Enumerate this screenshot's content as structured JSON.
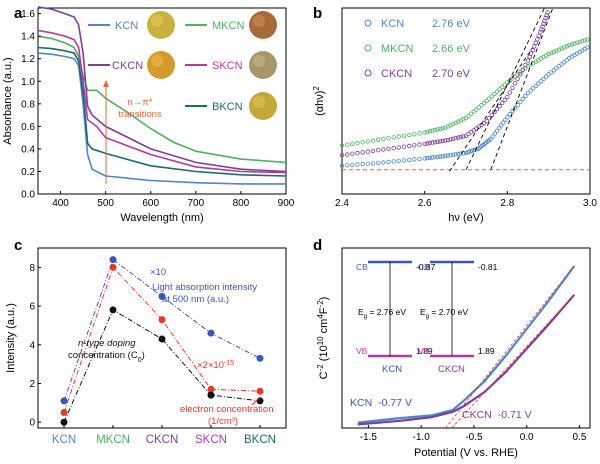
{
  "chart_data": [
    {
      "panel": "a",
      "type": "line",
      "xlabel": "Wavelength (nm)",
      "ylabel": "Absorbance (a.u.)",
      "xlim": [
        350,
        900
      ],
      "ylim": [
        0.0,
        1.65
      ],
      "xticks": [
        "400",
        "500",
        "600",
        "700",
        "800",
        "900"
      ],
      "yticks": [
        "0.0",
        "0.2",
        "0.4",
        "0.6",
        "0.8",
        "1.0",
        "1.2",
        "1.4",
        "1.6"
      ],
      "annotation": "n→π* transitions",
      "annotation_x": 500,
      "series": [
        {
          "name": "KCN",
          "color": "#4f86c6",
          "points": [
            [
              350,
              1.25
            ],
            [
              380,
              1.24
            ],
            [
              410,
              1.22
            ],
            [
              430,
              1.2
            ],
            [
              440,
              1.14
            ],
            [
              450,
              0.8
            ],
            [
              460,
              0.35
            ],
            [
              470,
              0.22
            ],
            [
              500,
              0.16
            ],
            [
              600,
              0.12
            ],
            [
              700,
              0.1
            ],
            [
              800,
              0.09
            ],
            [
              900,
              0.09
            ]
          ]
        },
        {
          "name": "MKCN",
          "color": "#4fb060",
          "points": [
            [
              350,
              1.4
            ],
            [
              380,
              1.38
            ],
            [
              410,
              1.34
            ],
            [
              430,
              1.3
            ],
            [
              440,
              1.22
            ],
            [
              450,
              1.05
            ],
            [
              460,
              0.92
            ],
            [
              480,
              0.92
            ],
            [
              500,
              0.85
            ],
            [
              550,
              0.72
            ],
            [
              600,
              0.58
            ],
            [
              650,
              0.46
            ],
            [
              700,
              0.38
            ],
            [
              800,
              0.31
            ],
            [
              900,
              0.28
            ]
          ]
        },
        {
          "name": "CKCN",
          "color": "#7c3f98",
          "points": [
            [
              350,
              1.66
            ],
            [
              380,
              1.64
            ],
            [
              410,
              1.6
            ],
            [
              430,
              1.57
            ],
            [
              440,
              1.5
            ],
            [
              450,
              1.25
            ],
            [
              460,
              0.78
            ],
            [
              470,
              0.7
            ],
            [
              500,
              0.6
            ],
            [
              600,
              0.4
            ],
            [
              700,
              0.28
            ],
            [
              800,
              0.22
            ],
            [
              900,
              0.2
            ]
          ]
        },
        {
          "name": "SKCN",
          "color": "#b53aa0",
          "points": [
            [
              350,
              1.45
            ],
            [
              380,
              1.43
            ],
            [
              410,
              1.4
            ],
            [
              430,
              1.37
            ],
            [
              440,
              1.3
            ],
            [
              450,
              1.0
            ],
            [
              460,
              0.66
            ],
            [
              480,
              0.6
            ],
            [
              500,
              0.5
            ],
            [
              600,
              0.35
            ],
            [
              700,
              0.24
            ],
            [
              800,
              0.2
            ],
            [
              900,
              0.19
            ]
          ]
        },
        {
          "name": "BKCN",
          "color": "#1d6a6a",
          "points": [
            [
              350,
              1.3
            ],
            [
              380,
              1.29
            ],
            [
              410,
              1.27
            ],
            [
              430,
              1.25
            ],
            [
              440,
              1.18
            ],
            [
              450,
              0.9
            ],
            [
              460,
              0.45
            ],
            [
              470,
              0.4
            ],
            [
              500,
              0.36
            ],
            [
              600,
              0.25
            ],
            [
              700,
              0.2
            ],
            [
              800,
              0.17
            ],
            [
              900,
              0.16
            ]
          ]
        }
      ]
    },
    {
      "panel": "b",
      "type": "scatter",
      "xlabel": "hν (eV)",
      "ylabel": "(αhν)²",
      "xlim": [
        2.4,
        3.0
      ],
      "ylim": [
        -3,
        20
      ],
      "xticks": [
        "2.4",
        "2.6",
        "2.8",
        "3.0"
      ],
      "series": [
        {
          "name": "KCN",
          "bandgap": "2.76 eV",
          "color": "#4f86c6",
          "points": [
            [
              2.4,
              0.5
            ],
            [
              2.5,
              0.9
            ],
            [
              2.6,
              1.4
            ],
            [
              2.65,
              1.7
            ],
            [
              2.7,
              2.1
            ],
            [
              2.73,
              2.6
            ],
            [
              2.76,
              3.8
            ],
            [
              2.8,
              6.5
            ],
            [
              2.85,
              9.5
            ],
            [
              2.9,
              11.8
            ],
            [
              2.95,
              13.8
            ],
            [
              3.0,
              15.3
            ]
          ]
        },
        {
          "name": "MKCN",
          "bandgap": "2.66 eV",
          "color": "#4fb060",
          "points": [
            [
              2.4,
              3.0
            ],
            [
              2.5,
              3.8
            ],
            [
              2.6,
              4.6
            ],
            [
              2.65,
              5.2
            ],
            [
              2.7,
              6.4
            ],
            [
              2.75,
              8.5
            ],
            [
              2.8,
              10.8
            ],
            [
              2.85,
              12.8
            ],
            [
              2.9,
              14.3
            ],
            [
              2.95,
              15.4
            ],
            [
              3.0,
              16.2
            ]
          ]
        },
        {
          "name": "CKCN",
          "bandgap": "2.70 eV",
          "color": "#7c3f98",
          "points": [
            [
              2.4,
              1.8
            ],
            [
              2.5,
              2.5
            ],
            [
              2.6,
              3.2
            ],
            [
              2.65,
              3.6
            ],
            [
              2.7,
              4.2
            ],
            [
              2.75,
              6.0
            ],
            [
              2.8,
              9.0
            ],
            [
              2.85,
              13.5
            ],
            [
              2.88,
              17.0
            ],
            [
              2.9,
              19.8
            ]
          ]
        }
      ],
      "tangents": [
        {
          "from": [
            2.76,
            0
          ],
          "to": [
            2.91,
            20
          ]
        },
        {
          "from": [
            2.66,
            -0.2
          ],
          "to": [
            2.86,
            15
          ]
        },
        {
          "from": [
            2.7,
            0
          ],
          "to": [
            2.89,
            20
          ]
        }
      ],
      "baseline": 0
    },
    {
      "panel": "c",
      "type": "line",
      "ylabel": "Intensity (a.u.)",
      "categories": [
        "KCN",
        "MKCN",
        "CKCN",
        "SKCN",
        "BKCN"
      ],
      "category_colors": [
        "#4f86c6",
        "#4fb060",
        "#7c3f98",
        "#b53aa0",
        "#1d6a6a"
      ],
      "ylim": [
        -0.3,
        9.0
      ],
      "yticks": [
        "0",
        "2",
        "4",
        "6",
        "8"
      ],
      "series": [
        {
          "name": "Light absorption intensity at 500 nm (a.u.)",
          "color": "#3a55b4",
          "values": [
            1.1,
            8.4,
            6.5,
            4.6,
            3.3
          ]
        },
        {
          "name": "electron concentration (1/cm³)",
          "color": "#e8382a",
          "values": [
            0.5,
            8.0,
            5.3,
            1.7,
            1.6
          ]
        },
        {
          "name": "n-type doping concentration (C₀)",
          "color": "#111111",
          "values": [
            0.0,
            5.8,
            4.3,
            1.4,
            1.1
          ]
        }
      ],
      "labels": {
        "x10": "×10",
        "light1": "Light absorption intensity",
        "light2": "at 500 nm (a.u.)",
        "x2e15": "×2×10",
        "x2e15_exp": "-15",
        "ntype1": "n-type doping",
        "ntype2": "concentration (C",
        "ntype2_sub": "0",
        "ntype2_end": ")",
        "elec1": "electron concentration",
        "elec2": "(1/cm³)"
      }
    },
    {
      "panel": "d",
      "type": "scatter",
      "xlabel": "Potential (V vs. RHE)",
      "ylabel_main": "C⁻² (10¹⁰ cm⁴F⁻²)",
      "xlim": [
        -1.75,
        0.6
      ],
      "ylim": [
        0,
        1
      ],
      "xticks": [
        "-1.5",
        "-1.0",
        "-0.5",
        "0.0",
        "0.5"
      ],
      "series": [
        {
          "name": "KCN",
          "flatband": "-0.77 V",
          "color": "#4f86c6",
          "points": [
            [
              -1.6,
              0.03
            ],
            [
              -1.2,
              0.055
            ],
            [
              -0.9,
              0.07
            ],
            [
              -0.7,
              0.1
            ],
            [
              -0.6,
              0.15
            ],
            [
              -0.4,
              0.26
            ],
            [
              -0.2,
              0.4
            ],
            [
              0.0,
              0.55
            ],
            [
              0.2,
              0.7
            ],
            [
              0.45,
              0.9
            ]
          ]
        },
        {
          "name": "CKCN",
          "flatband": "-0.71 V",
          "color": "#7c3f98",
          "points": [
            [
              -1.6,
              0.02
            ],
            [
              -1.2,
              0.04
            ],
            [
              -0.9,
              0.06
            ],
            [
              -0.7,
              0.09
            ],
            [
              -0.6,
              0.12
            ],
            [
              -0.4,
              0.2
            ],
            [
              -0.2,
              0.31
            ],
            [
              0.0,
              0.44
            ],
            [
              0.2,
              0.57
            ],
            [
              0.45,
              0.74
            ]
          ]
        }
      ],
      "band_diagrams": [
        {
          "name": "KCN",
          "cb": "-0.87",
          "vb": "1.89",
          "eg": "E₉ = 2.76 eV"
        },
        {
          "name": "CKCN",
          "cb": "-0.81",
          "vb": "1.89",
          "eg": "E₉ = 2.70 eV"
        }
      ]
    }
  ],
  "panel_labels": [
    "a",
    "b",
    "c",
    "d"
  ],
  "legends": {
    "a": [
      "KCN",
      "MKCN",
      "CKCN",
      "SKCN",
      "BKCN"
    ],
    "d_cb": "CB",
    "d_vb": "VB",
    "d_eg1": "E",
    "d_eg_sub": "g",
    "d_eg_val1": " = 2.76 eV",
    "d_eg_val2": " = 2.70 eV",
    "d_ylabel_main": "C",
    "d_ylabel_exp": "-2",
    "d_ylabel_unit1": " (10",
    "d_ylabel_exp2": "10",
    "d_ylabel_unit2": " cm",
    "d_ylabel_exp3": "4",
    "d_ylabel_unit3": "F",
    "d_ylabel_exp4": "-2",
    "d_ylabel_end": ")",
    "b_ylabel_main": "(αhν)",
    "b_ylabel_exp": "2",
    "a_annot1": "n→π*",
    "a_annot2": "transitions"
  }
}
